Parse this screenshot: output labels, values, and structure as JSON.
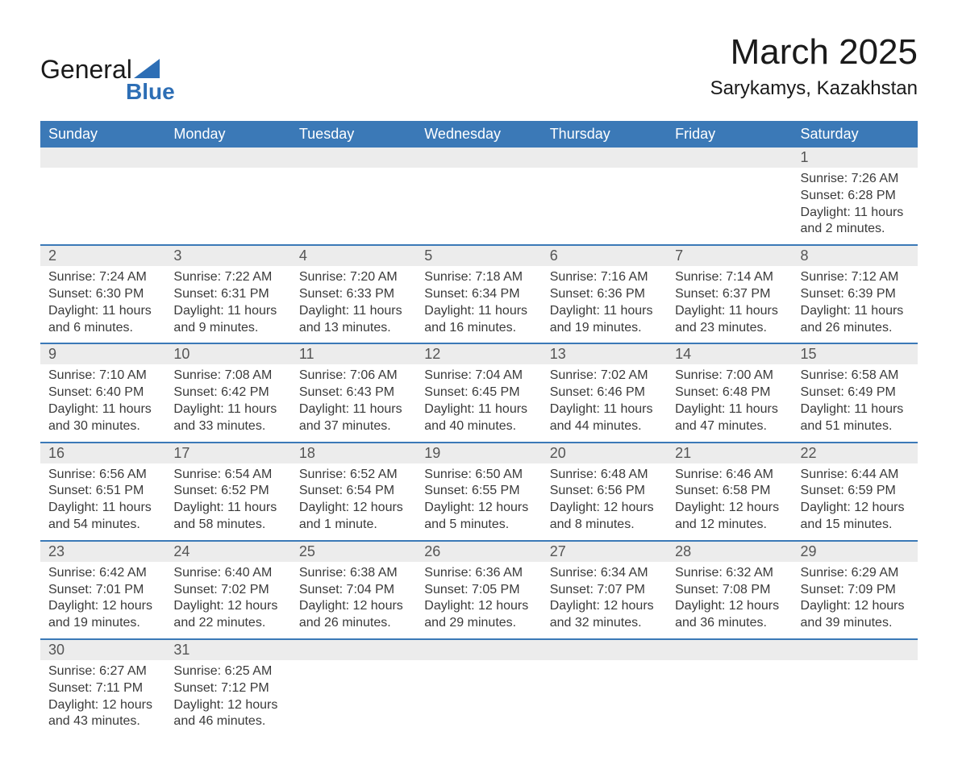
{
  "logo": {
    "word1": "General",
    "word2": "Blue"
  },
  "title": "March 2025",
  "location": "Sarykamys, Kazakhstan",
  "colors": {
    "header_bg": "#3b79b7",
    "header_text": "#ffffff",
    "daynum_bg": "#ececec",
    "row_border": "#3b79b7",
    "body_text": "#3a3a3a",
    "logo_blue": "#2d6eb5",
    "page_bg": "#ffffff"
  },
  "typography": {
    "title_fontsize": 44,
    "location_fontsize": 24,
    "weekday_fontsize": 18,
    "daynum_fontsize": 18,
    "cell_fontsize": 16,
    "font_family": "Arial"
  },
  "weekdays": [
    "Sunday",
    "Monday",
    "Tuesday",
    "Wednesday",
    "Thursday",
    "Friday",
    "Saturday"
  ],
  "weeks": [
    [
      null,
      null,
      null,
      null,
      null,
      null,
      {
        "d": "1",
        "sr": "Sunrise: 7:26 AM",
        "ss": "Sunset: 6:28 PM",
        "dl": "Daylight: 11 hours and 2 minutes."
      }
    ],
    [
      {
        "d": "2",
        "sr": "Sunrise: 7:24 AM",
        "ss": "Sunset: 6:30 PM",
        "dl": "Daylight: 11 hours and 6 minutes."
      },
      {
        "d": "3",
        "sr": "Sunrise: 7:22 AM",
        "ss": "Sunset: 6:31 PM",
        "dl": "Daylight: 11 hours and 9 minutes."
      },
      {
        "d": "4",
        "sr": "Sunrise: 7:20 AM",
        "ss": "Sunset: 6:33 PM",
        "dl": "Daylight: 11 hours and 13 minutes."
      },
      {
        "d": "5",
        "sr": "Sunrise: 7:18 AM",
        "ss": "Sunset: 6:34 PM",
        "dl": "Daylight: 11 hours and 16 minutes."
      },
      {
        "d": "6",
        "sr": "Sunrise: 7:16 AM",
        "ss": "Sunset: 6:36 PM",
        "dl": "Daylight: 11 hours and 19 minutes."
      },
      {
        "d": "7",
        "sr": "Sunrise: 7:14 AM",
        "ss": "Sunset: 6:37 PM",
        "dl": "Daylight: 11 hours and 23 minutes."
      },
      {
        "d": "8",
        "sr": "Sunrise: 7:12 AM",
        "ss": "Sunset: 6:39 PM",
        "dl": "Daylight: 11 hours and 26 minutes."
      }
    ],
    [
      {
        "d": "9",
        "sr": "Sunrise: 7:10 AM",
        "ss": "Sunset: 6:40 PM",
        "dl": "Daylight: 11 hours and 30 minutes."
      },
      {
        "d": "10",
        "sr": "Sunrise: 7:08 AM",
        "ss": "Sunset: 6:42 PM",
        "dl": "Daylight: 11 hours and 33 minutes."
      },
      {
        "d": "11",
        "sr": "Sunrise: 7:06 AM",
        "ss": "Sunset: 6:43 PM",
        "dl": "Daylight: 11 hours and 37 minutes."
      },
      {
        "d": "12",
        "sr": "Sunrise: 7:04 AM",
        "ss": "Sunset: 6:45 PM",
        "dl": "Daylight: 11 hours and 40 minutes."
      },
      {
        "d": "13",
        "sr": "Sunrise: 7:02 AM",
        "ss": "Sunset: 6:46 PM",
        "dl": "Daylight: 11 hours and 44 minutes."
      },
      {
        "d": "14",
        "sr": "Sunrise: 7:00 AM",
        "ss": "Sunset: 6:48 PM",
        "dl": "Daylight: 11 hours and 47 minutes."
      },
      {
        "d": "15",
        "sr": "Sunrise: 6:58 AM",
        "ss": "Sunset: 6:49 PM",
        "dl": "Daylight: 11 hours and 51 minutes."
      }
    ],
    [
      {
        "d": "16",
        "sr": "Sunrise: 6:56 AM",
        "ss": "Sunset: 6:51 PM",
        "dl": "Daylight: 11 hours and 54 minutes."
      },
      {
        "d": "17",
        "sr": "Sunrise: 6:54 AM",
        "ss": "Sunset: 6:52 PM",
        "dl": "Daylight: 11 hours and 58 minutes."
      },
      {
        "d": "18",
        "sr": "Sunrise: 6:52 AM",
        "ss": "Sunset: 6:54 PM",
        "dl": "Daylight: 12 hours and 1 minute."
      },
      {
        "d": "19",
        "sr": "Sunrise: 6:50 AM",
        "ss": "Sunset: 6:55 PM",
        "dl": "Daylight: 12 hours and 5 minutes."
      },
      {
        "d": "20",
        "sr": "Sunrise: 6:48 AM",
        "ss": "Sunset: 6:56 PM",
        "dl": "Daylight: 12 hours and 8 minutes."
      },
      {
        "d": "21",
        "sr": "Sunrise: 6:46 AM",
        "ss": "Sunset: 6:58 PM",
        "dl": "Daylight: 12 hours and 12 minutes."
      },
      {
        "d": "22",
        "sr": "Sunrise: 6:44 AM",
        "ss": "Sunset: 6:59 PM",
        "dl": "Daylight: 12 hours and 15 minutes."
      }
    ],
    [
      {
        "d": "23",
        "sr": "Sunrise: 6:42 AM",
        "ss": "Sunset: 7:01 PM",
        "dl": "Daylight: 12 hours and 19 minutes."
      },
      {
        "d": "24",
        "sr": "Sunrise: 6:40 AM",
        "ss": "Sunset: 7:02 PM",
        "dl": "Daylight: 12 hours and 22 minutes."
      },
      {
        "d": "25",
        "sr": "Sunrise: 6:38 AM",
        "ss": "Sunset: 7:04 PM",
        "dl": "Daylight: 12 hours and 26 minutes."
      },
      {
        "d": "26",
        "sr": "Sunrise: 6:36 AM",
        "ss": "Sunset: 7:05 PM",
        "dl": "Daylight: 12 hours and 29 minutes."
      },
      {
        "d": "27",
        "sr": "Sunrise: 6:34 AM",
        "ss": "Sunset: 7:07 PM",
        "dl": "Daylight: 12 hours and 32 minutes."
      },
      {
        "d": "28",
        "sr": "Sunrise: 6:32 AM",
        "ss": "Sunset: 7:08 PM",
        "dl": "Daylight: 12 hours and 36 minutes."
      },
      {
        "d": "29",
        "sr": "Sunrise: 6:29 AM",
        "ss": "Sunset: 7:09 PM",
        "dl": "Daylight: 12 hours and 39 minutes."
      }
    ],
    [
      {
        "d": "30",
        "sr": "Sunrise: 6:27 AM",
        "ss": "Sunset: 7:11 PM",
        "dl": "Daylight: 12 hours and 43 minutes."
      },
      {
        "d": "31",
        "sr": "Sunrise: 6:25 AM",
        "ss": "Sunset: 7:12 PM",
        "dl": "Daylight: 12 hours and 46 minutes."
      },
      null,
      null,
      null,
      null,
      null
    ]
  ]
}
